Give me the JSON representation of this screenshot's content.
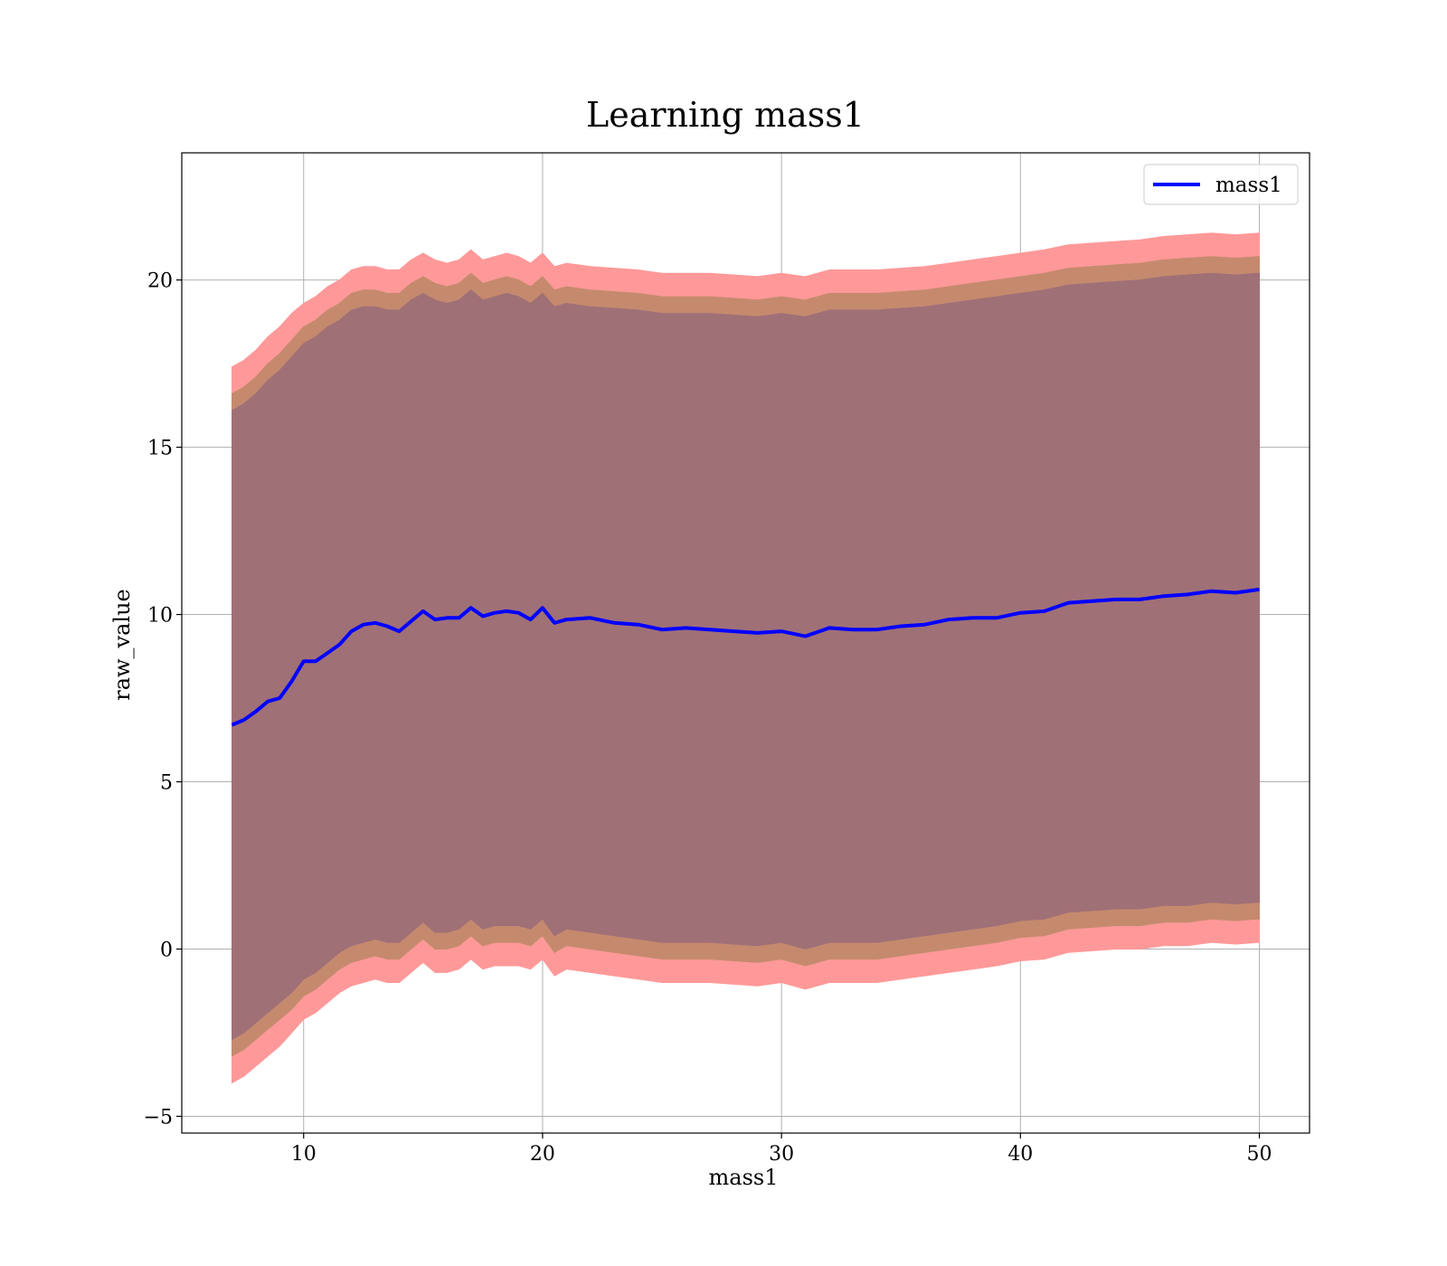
{
  "chart_data": {
    "type": "line",
    "title": "Learning mass1",
    "xlabel": "mass1",
    "ylabel": "raw_value",
    "xlim": [
      4.9,
      52.1
    ],
    "ylim": [
      -5.5,
      23.8
    ],
    "xticks": [
      10,
      20,
      30,
      40,
      50
    ],
    "yticks": [
      -5,
      0,
      5,
      10,
      15,
      20
    ],
    "xtick_labels": [
      "10",
      "20",
      "30",
      "40",
      "50"
    ],
    "ytick_labels": [
      "−5",
      "0",
      "5",
      "10",
      "15",
      "20"
    ],
    "grid": true,
    "legend": {
      "placement": "top-right",
      "entries": [
        "mass1"
      ]
    },
    "colors": {
      "line": "#0000ff",
      "band_outer": "#ff9999",
      "band_middle": "#c58a6e",
      "band_inner": "#a07077",
      "grid": "#b0b0b0"
    },
    "series": [
      {
        "name": "mass1",
        "x": [
          7,
          7.5,
          8,
          8.5,
          9,
          9.5,
          10,
          10.5,
          11,
          11.5,
          12,
          12.5,
          13,
          13.5,
          14,
          14.5,
          15,
          15.5,
          16,
          16.5,
          17,
          17.5,
          18,
          18.5,
          19,
          19.5,
          20,
          20.5,
          21,
          22,
          23,
          24,
          25,
          26,
          27,
          28,
          29,
          30,
          31,
          32,
          33,
          34,
          35,
          36,
          37,
          38,
          39,
          40,
          41,
          42,
          43,
          44,
          45,
          46,
          47,
          48,
          49,
          50
        ],
        "y": [
          6.7,
          6.85,
          7.1,
          7.4,
          7.5,
          8.0,
          8.6,
          8.6,
          8.85,
          9.1,
          9.5,
          9.7,
          9.75,
          9.65,
          9.5,
          9.8,
          10.1,
          9.85,
          9.9,
          9.9,
          10.2,
          9.95,
          10.05,
          10.1,
          10.05,
          9.85,
          10.2,
          9.75,
          9.85,
          9.9,
          9.75,
          9.7,
          9.55,
          9.6,
          9.55,
          9.5,
          9.45,
          9.5,
          9.35,
          9.6,
          9.55,
          9.55,
          9.65,
          9.7,
          9.85,
          9.9,
          9.9,
          10.05,
          10.1,
          10.35,
          10.4,
          10.45,
          10.45,
          10.55,
          10.6,
          10.7,
          10.65,
          10.75
        ]
      }
    ],
    "bands": [
      {
        "label": "outer",
        "upper": [
          17.4,
          17.6,
          17.9,
          18.3,
          18.6,
          19.0,
          19.3,
          19.5,
          19.8,
          20.0,
          20.3,
          20.4,
          20.4,
          20.3,
          20.3,
          20.6,
          20.8,
          20.6,
          20.5,
          20.6,
          20.9,
          20.6,
          20.7,
          20.8,
          20.7,
          20.5,
          20.8,
          20.4,
          20.5,
          20.4,
          20.35,
          20.3,
          20.2,
          20.2,
          20.2,
          20.15,
          20.1,
          20.2,
          20.1,
          20.3,
          20.3,
          20.3,
          20.35,
          20.4,
          20.5,
          20.6,
          20.7,
          20.8,
          20.9,
          21.05,
          21.1,
          21.15,
          21.2,
          21.3,
          21.35,
          21.4,
          21.35,
          21.4
        ],
        "lower": [
          -4.0,
          -3.8,
          -3.5,
          -3.2,
          -2.9,
          -2.5,
          -2.1,
          -1.9,
          -1.6,
          -1.3,
          -1.1,
          -1.0,
          -0.9,
          -1.0,
          -1.0,
          -0.7,
          -0.4,
          -0.7,
          -0.7,
          -0.6,
          -0.3,
          -0.6,
          -0.5,
          -0.5,
          -0.5,
          -0.6,
          -0.3,
          -0.8,
          -0.6,
          -0.7,
          -0.8,
          -0.9,
          -1.0,
          -1.0,
          -1.0,
          -1.05,
          -1.1,
          -1.0,
          -1.2,
          -1.0,
          -1.0,
          -1.0,
          -0.9,
          -0.8,
          -0.7,
          -0.6,
          -0.5,
          -0.35,
          -0.3,
          -0.1,
          -0.05,
          0.0,
          0.0,
          0.1,
          0.1,
          0.2,
          0.15,
          0.2
        ]
      },
      {
        "label": "middle",
        "upper": [
          16.6,
          16.8,
          17.1,
          17.5,
          17.8,
          18.2,
          18.6,
          18.8,
          19.1,
          19.3,
          19.6,
          19.7,
          19.7,
          19.6,
          19.6,
          19.9,
          20.1,
          19.9,
          19.8,
          19.9,
          20.2,
          19.9,
          20.0,
          20.1,
          20.0,
          19.8,
          20.1,
          19.7,
          19.8,
          19.7,
          19.65,
          19.6,
          19.5,
          19.5,
          19.5,
          19.45,
          19.4,
          19.5,
          19.4,
          19.6,
          19.6,
          19.6,
          19.65,
          19.7,
          19.8,
          19.9,
          20.0,
          20.1,
          20.2,
          20.35,
          20.4,
          20.45,
          20.5,
          20.6,
          20.65,
          20.7,
          20.65,
          20.7
        ],
        "lower": [
          -3.2,
          -3.0,
          -2.7,
          -2.4,
          -2.1,
          -1.8,
          -1.4,
          -1.2,
          -0.9,
          -0.6,
          -0.4,
          -0.3,
          -0.2,
          -0.3,
          -0.3,
          0.0,
          0.3,
          0.0,
          0.0,
          0.1,
          0.4,
          0.1,
          0.2,
          0.2,
          0.2,
          0.1,
          0.4,
          -0.1,
          0.1,
          0.0,
          -0.1,
          -0.2,
          -0.3,
          -0.3,
          -0.3,
          -0.35,
          -0.4,
          -0.3,
          -0.5,
          -0.3,
          -0.3,
          -0.3,
          -0.2,
          -0.1,
          0.0,
          0.1,
          0.2,
          0.35,
          0.4,
          0.6,
          0.65,
          0.7,
          0.7,
          0.8,
          0.8,
          0.9,
          0.85,
          0.9
        ]
      },
      {
        "label": "inner",
        "upper": [
          16.1,
          16.3,
          16.6,
          17.0,
          17.3,
          17.7,
          18.1,
          18.3,
          18.6,
          18.8,
          19.1,
          19.2,
          19.2,
          19.1,
          19.1,
          19.4,
          19.6,
          19.4,
          19.3,
          19.4,
          19.7,
          19.4,
          19.5,
          19.6,
          19.5,
          19.3,
          19.6,
          19.2,
          19.3,
          19.2,
          19.15,
          19.1,
          19.0,
          19.0,
          19.0,
          18.95,
          18.9,
          19.0,
          18.9,
          19.1,
          19.1,
          19.1,
          19.15,
          19.2,
          19.3,
          19.4,
          19.5,
          19.6,
          19.7,
          19.85,
          19.9,
          19.95,
          20.0,
          20.1,
          20.15,
          20.2,
          20.15,
          20.2
        ],
        "lower": [
          -2.7,
          -2.5,
          -2.2,
          -1.9,
          -1.6,
          -1.3,
          -0.9,
          -0.7,
          -0.4,
          -0.1,
          0.1,
          0.2,
          0.3,
          0.2,
          0.2,
          0.5,
          0.8,
          0.5,
          0.5,
          0.6,
          0.9,
          0.6,
          0.7,
          0.7,
          0.7,
          0.6,
          0.9,
          0.4,
          0.6,
          0.5,
          0.4,
          0.3,
          0.2,
          0.2,
          0.2,
          0.15,
          0.1,
          0.2,
          0.0,
          0.2,
          0.2,
          0.2,
          0.3,
          0.4,
          0.5,
          0.6,
          0.7,
          0.85,
          0.9,
          1.1,
          1.15,
          1.2,
          1.2,
          1.3,
          1.3,
          1.4,
          1.35,
          1.4
        ]
      }
    ]
  }
}
